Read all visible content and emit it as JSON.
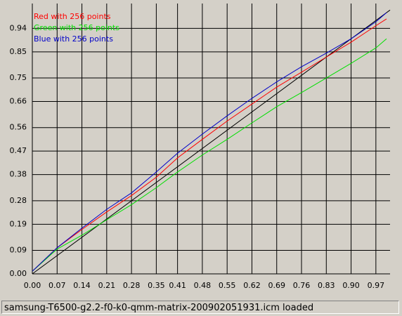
{
  "chart_data": {
    "type": "line",
    "x": [
      0,
      0.07,
      0.14,
      0.21,
      0.28,
      0.35,
      0.41,
      0.48,
      0.55,
      0.62,
      0.69,
      0.76,
      0.83,
      0.9,
      0.97,
      1.0
    ],
    "series": [
      {
        "name": "Red with 256 points",
        "color": "#ff0000",
        "values": [
          0.01,
          0.1,
          0.17,
          0.237,
          0.3,
          0.37,
          0.444,
          0.515,
          0.585,
          0.65,
          0.715,
          0.772,
          0.83,
          0.887,
          0.95,
          0.976
        ]
      },
      {
        "name": "Green with 256 points",
        "color": "#00e000",
        "values": [
          0.01,
          0.095,
          0.148,
          0.207,
          0.265,
          0.33,
          0.39,
          0.455,
          0.515,
          0.578,
          0.64,
          0.694,
          0.75,
          0.806,
          0.865,
          0.9
        ]
      },
      {
        "name": "Blue with 256 points",
        "color": "#0000c8",
        "values": [
          0.01,
          0.1,
          0.175,
          0.247,
          0.31,
          0.39,
          0.462,
          0.535,
          0.605,
          0.672,
          0.735,
          0.793,
          0.845,
          0.9,
          0.965,
          1.0
        ]
      }
    ],
    "xlim": [
      0,
      1.01
    ],
    "ylim": [
      0,
      1.035
    ],
    "xticks": [
      {
        "value": 0,
        "label": "0.00"
      },
      0.07,
      0.14,
      0.21,
      0.28,
      0.35,
      0.41,
      0.48,
      0.55,
      0.62,
      0.69,
      0.76,
      0.83,
      {
        "value": 0.9,
        "label": "0.90"
      },
      0.97
    ],
    "yticks": [
      {
        "value": 0,
        "label": "0.00"
      },
      0.09,
      0.19,
      0.28,
      0.38,
      0.47,
      0.56,
      0.66,
      0.75,
      0.85,
      0.94
    ],
    "grid": true,
    "diagonal": true,
    "legend": "top-left"
  },
  "status": "samsung-T6500-g2.2-f0-k0-qmm-matrix-200902051931.icm loaded"
}
